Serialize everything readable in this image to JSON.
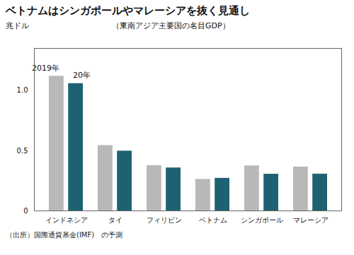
{
  "chart_data": {
    "type": "bar",
    "title": "ベトナムはシンガポールやマレーシアを抜く見通し",
    "subtitle": "（東南アジア主要国の名目GDP）",
    "ylabel": "兆ドル",
    "caption": "（出所）国際通貨基金(IMF)　の予測",
    "categories": [
      "インドネシア",
      "タイ",
      "フィリピン",
      "ベトナム",
      "シンガポール",
      "マレーシア"
    ],
    "series": [
      {
        "name": "2019年",
        "color": "#b8b8b8",
        "values": [
          1.119,
          0.543,
          0.377,
          0.262,
          0.374,
          0.365
        ]
      },
      {
        "name": "20年",
        "color": "#1e6272",
        "values": [
          1.058,
          0.497,
          0.357,
          0.271,
          0.305,
          0.306
        ]
      }
    ],
    "ylim": [
      0,
      1.35
    ],
    "yticks": [
      0,
      0.5,
      {
        "value": 1,
        "label": "1.0"
      }
    ],
    "grid": false
  }
}
